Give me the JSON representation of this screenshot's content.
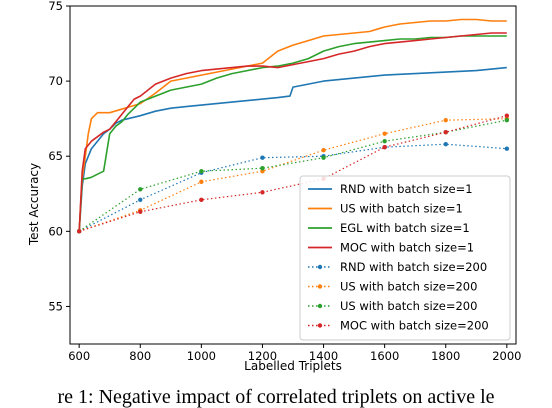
{
  "caption": "re 1: Negative impact of correlated triplets on active le",
  "chart_data": {
    "type": "line",
    "xlabel": "Labelled Triplets",
    "ylabel": "Test Accuracy",
    "xlim": [
      570,
      2030
    ],
    "ylim": [
      52.5,
      75
    ],
    "xticks": [
      600,
      800,
      1000,
      1200,
      1400,
      1600,
      1800,
      2000
    ],
    "yticks": [
      55,
      60,
      65,
      70,
      75
    ],
    "legend_position": "lower-right",
    "series": [
      {
        "name": "RND with batch size=1",
        "color": "#1f77b4",
        "style": "solid",
        "x": [
          600,
          610,
          620,
          640,
          660,
          680,
          700,
          720,
          740,
          760,
          780,
          800,
          850,
          900,
          950,
          1000,
          1050,
          1100,
          1150,
          1200,
          1250,
          1290,
          1300,
          1350,
          1400,
          1450,
          1500,
          1550,
          1600,
          1700,
          1800,
          1900,
          2000
        ],
        "y": [
          60.0,
          63.0,
          64.5,
          65.5,
          66.0,
          66.5,
          66.8,
          67.2,
          67.4,
          67.5,
          67.6,
          67.7,
          68.0,
          68.2,
          68.3,
          68.4,
          68.5,
          68.6,
          68.7,
          68.8,
          68.9,
          69.0,
          69.6,
          69.8,
          70.0,
          70.1,
          70.2,
          70.3,
          70.4,
          70.5,
          70.6,
          70.7,
          70.9
        ]
      },
      {
        "name": "US with batch size=1",
        "color": "#ff7f0e",
        "style": "solid",
        "x": [
          600,
          610,
          620,
          630,
          640,
          660,
          680,
          700,
          750,
          800,
          850,
          900,
          950,
          1000,
          1050,
          1100,
          1150,
          1200,
          1250,
          1300,
          1350,
          1400,
          1450,
          1500,
          1550,
          1600,
          1650,
          1700,
          1750,
          1800,
          1850,
          1900,
          1950,
          2000
        ],
        "y": [
          60.0,
          63.5,
          65.0,
          66.5,
          67.5,
          67.9,
          67.9,
          67.9,
          68.2,
          68.5,
          69.2,
          70.0,
          70.2,
          70.4,
          70.6,
          70.8,
          71.0,
          71.2,
          72.0,
          72.4,
          72.7,
          73.0,
          73.1,
          73.2,
          73.3,
          73.6,
          73.8,
          73.9,
          74.0,
          74.0,
          74.1,
          74.1,
          74.0,
          74.0
        ]
      },
      {
        "name": "EGL with batch size=1",
        "color": "#2ca02c",
        "style": "solid",
        "x": [
          600,
          610,
          620,
          640,
          660,
          680,
          700,
          720,
          740,
          760,
          780,
          800,
          850,
          900,
          950,
          1000,
          1050,
          1100,
          1150,
          1200,
          1250,
          1300,
          1350,
          1400,
          1450,
          1500,
          1550,
          1600,
          1650,
          1700,
          1750,
          1800,
          1850,
          1900,
          1950,
          2000
        ],
        "y": [
          60.0,
          63.5,
          63.5,
          63.6,
          63.8,
          64.0,
          66.5,
          67.0,
          67.3,
          67.8,
          68.2,
          68.6,
          69.0,
          69.4,
          69.6,
          69.8,
          70.2,
          70.5,
          70.7,
          70.9,
          71.0,
          71.2,
          71.5,
          72.0,
          72.3,
          72.5,
          72.6,
          72.7,
          72.8,
          72.8,
          72.9,
          72.9,
          73.0,
          73.0,
          73.0,
          73.0
        ]
      },
      {
        "name": "MOC with batch size=1",
        "color": "#d62728",
        "style": "solid",
        "x": [
          600,
          610,
          620,
          640,
          660,
          680,
          700,
          720,
          740,
          760,
          780,
          800,
          850,
          900,
          950,
          1000,
          1050,
          1100,
          1150,
          1200,
          1250,
          1300,
          1350,
          1400,
          1450,
          1500,
          1550,
          1600,
          1650,
          1700,
          1750,
          1800,
          1850,
          1900,
          1950,
          2000
        ],
        "y": [
          60.0,
          64.0,
          65.5,
          66.0,
          66.3,
          66.6,
          66.8,
          67.3,
          67.8,
          68.3,
          68.8,
          69.0,
          69.8,
          70.2,
          70.5,
          70.7,
          70.8,
          70.9,
          71.0,
          71.0,
          70.9,
          71.1,
          71.3,
          71.5,
          71.8,
          72.0,
          72.3,
          72.5,
          72.6,
          72.7,
          72.8,
          72.9,
          73.0,
          73.1,
          73.2,
          73.2
        ]
      },
      {
        "name": "RND with batch size=200",
        "color": "#1f77b4",
        "style": "dotted",
        "x": [
          600,
          800,
          1000,
          1200,
          1400,
          1600,
          1800,
          2000
        ],
        "y": [
          60.0,
          62.1,
          63.9,
          64.9,
          65.0,
          65.6,
          65.8,
          65.5
        ]
      },
      {
        "name": "US with batch size=200",
        "color": "#ff7f0e",
        "style": "dotted",
        "x": [
          600,
          800,
          1000,
          1200,
          1400,
          1600,
          1800,
          2000
        ],
        "y": [
          60.0,
          61.4,
          63.3,
          64.0,
          65.4,
          66.5,
          67.4,
          67.5
        ]
      },
      {
        "name": "US with batch size=200",
        "color": "#2ca02c",
        "style": "dotted",
        "x": [
          600,
          800,
          1000,
          1200,
          1400,
          1600,
          1800,
          2000
        ],
        "y": [
          60.0,
          62.8,
          64.0,
          64.2,
          64.9,
          66.0,
          66.6,
          67.4
        ]
      },
      {
        "name": "MOC with batch size=200",
        "color": "#d62728",
        "style": "dotted",
        "x": [
          600,
          800,
          1000,
          1200,
          1400,
          1600,
          1800,
          2000
        ],
        "y": [
          60.0,
          61.3,
          62.1,
          62.6,
          63.5,
          65.6,
          66.6,
          67.7
        ]
      }
    ]
  }
}
